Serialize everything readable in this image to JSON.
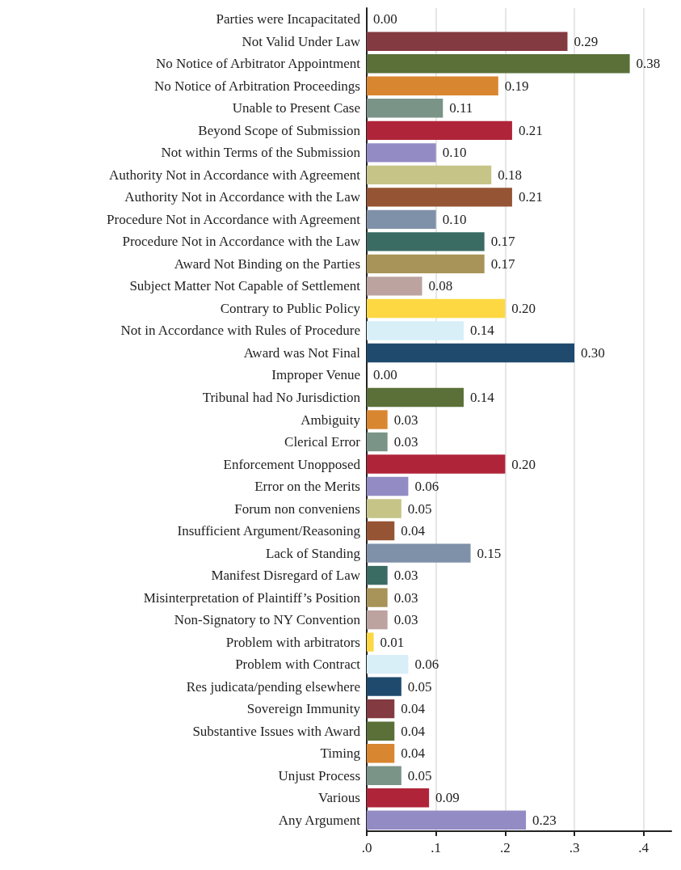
{
  "chart_data": {
    "type": "bar",
    "orientation": "horizontal",
    "grid": "x",
    "value_labels": [
      "0.00",
      "0.29",
      "0.38",
      "0.19",
      "0.11",
      "0.21",
      "0.10",
      "0.18",
      "0.21",
      "0.10",
      "0.17",
      "0.17",
      "0.08",
      "0.20",
      "0.14",
      "0.30",
      "0.00",
      "0.14",
      "0.03",
      "0.03",
      "0.20",
      "0.06",
      "0.05",
      "0.04",
      "0.15",
      "0.03",
      "0.03",
      "0.03",
      "0.01",
      "0.06",
      "0.05",
      "0.04",
      "0.04",
      "0.04",
      "0.05",
      "0.09",
      "0.23"
    ],
    "categories": [
      "Parties were Incapacitated",
      "Not Valid Under Law",
      "No Notice of Arbitrator Appointment",
      "No Notice of Arbitration Proceedings",
      "Unable to Present Case",
      "Beyond Scope of Submission",
      "Not within Terms of the Submission",
      "Authority Not in Accordance with Agreement",
      "Authority Not in Accordance with the Law",
      "Procedure Not in Accordance with Agreement",
      "Procedure Not in Accordance with the Law",
      "Award Not Binding on the Parties",
      "Subject Matter Not Capable of Settlement",
      "Contrary to Public Policy",
      "Not in Accordance with Rules of Procedure",
      "Award was Not Final",
      "Improper Venue",
      "Tribunal had No Jurisdiction",
      "Ambiguity",
      "Clerical Error",
      "Enforcement Unopposed",
      "Error on the Merits",
      "Forum non conveniens",
      "Insufficient Argument/Reasoning",
      "Lack of Standing",
      "Manifest Disregard of Law",
      "Misinterpretation of Plaintiff’s Position",
      "Non-Signatory to NY Convention",
      "Problem with arbitrators",
      "Problem with Contract",
      "Res judicata/pending elsewhere",
      "Sovereign Immunity",
      "Substantive Issues with Award",
      "Timing",
      "Unjust Process",
      "Various",
      "Any Argument"
    ],
    "values": [
      0.0,
      0.29,
      0.38,
      0.19,
      0.11,
      0.21,
      0.1,
      0.18,
      0.21,
      0.1,
      0.17,
      0.17,
      0.08,
      0.2,
      0.14,
      0.3,
      0.0,
      0.14,
      0.03,
      0.03,
      0.2,
      0.06,
      0.05,
      0.04,
      0.15,
      0.03,
      0.03,
      0.03,
      0.01,
      0.06,
      0.05,
      0.04,
      0.04,
      0.04,
      0.05,
      0.09,
      0.23
    ],
    "colors": [
      "#1f4a6e",
      "#843a41",
      "#5a7038",
      "#d98630",
      "#7a9487",
      "#b0243a",
      "#938bc3",
      "#c7c488",
      "#955434",
      "#7f91a8",
      "#3b6c64",
      "#a89358",
      "#bca39f",
      "#fdd843",
      "#d8eff8",
      "#1f4a6e",
      "#843a41",
      "#5a7038",
      "#d98630",
      "#7a9487",
      "#b0243a",
      "#938bc3",
      "#c7c488",
      "#955434",
      "#7f91a8",
      "#3b6c64",
      "#a89358",
      "#bca39f",
      "#fdd843",
      "#d8eff8",
      "#1f4a6e",
      "#843a41",
      "#5a7038",
      "#d98630",
      "#7a9487",
      "#b0243a",
      "#938bc3"
    ],
    "xlim": [
      0,
      0.44
    ],
    "xticks": [
      {
        "value": 0,
        "label": ".0"
      },
      {
        "value": 0.1,
        "label": ".1"
      },
      {
        "value": 0.2,
        "label": ".2"
      },
      {
        "value": 0.3,
        "label": ".3"
      },
      {
        "value": 0.4,
        "label": ".4"
      }
    ]
  }
}
